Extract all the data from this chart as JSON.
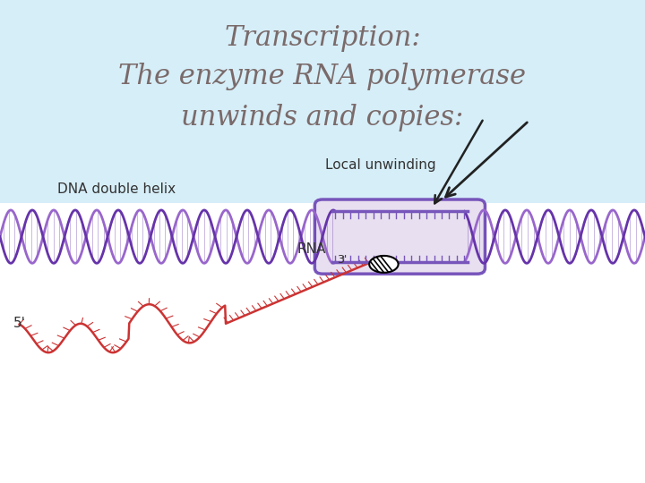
{
  "background_color": "#d6eef8",
  "lower_bg_color": "#ffffff",
  "title_line1": "Transcription:",
  "title_line2": "The enzyme RNA polymerase",
  "title_line3": "unwinds and copies:",
  "title_color": "#7a6a6a",
  "title_fontsize": 22,
  "title_style": "italic",
  "dna_helix_color1": "#9966cc",
  "dna_helix_color2": "#6633aa",
  "rna_color": "#cc3333",
  "unwinding_box_color": "#7755bb",
  "label_dna": "DNA double helix",
  "label_local": "Local unwinding",
  "label_rna": "RNA",
  "label_5prime": "5'",
  "label_3prime": "3'",
  "label_color": "#333333",
  "label_fontsize": 11,
  "arrow_color": "#222222"
}
